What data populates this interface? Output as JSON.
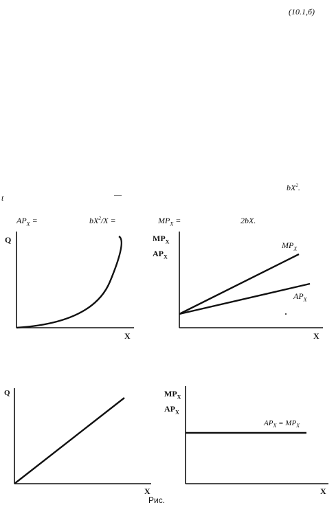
{
  "equation_ref": "(10.1,б)",
  "text_fragments": {
    "top_right": "bX",
    "top_right_sup": "2",
    "top_right_tail": ".",
    "left_t": "t",
    "dash": "—"
  },
  "formulas": {
    "ap_prefix": "AP",
    "ap_sub": "X",
    "ap_eq": " =",
    "ap_rhs": "bX",
    "ap_rhs_sup": "2",
    "ap_rhs_tail": "/X =",
    "mp_prefix": "MP",
    "mp_sub": "X",
    "mp_eq": " =",
    "mp_rhs": "2bX."
  },
  "graphs": {
    "top_left": {
      "y_label": "Q",
      "x_label": "X"
    },
    "top_right": {
      "y_label_1": "MP",
      "y_label_1_sub": "X",
      "y_label_2": "AP",
      "y_label_2_sub": "X",
      "x_label": "X",
      "line1_label": "MP",
      "line1_sub": "X",
      "line2_label": "AP",
      "line2_sub": "X"
    },
    "bottom_left": {
      "y_label": "Q",
      "x_label": "X"
    },
    "bottom_right": {
      "y_label_1": "MP",
      "y_label_1_sub": "X",
      "y_label_2": "AP",
      "y_label_2_sub": "X",
      "x_label": "X",
      "line_label_a": "AP",
      "line_label_a_sub": "X",
      "line_label_eq": " = ",
      "line_label_b": "MP",
      "line_label_b_sub": "X"
    }
  },
  "caption": "Рис."
}
